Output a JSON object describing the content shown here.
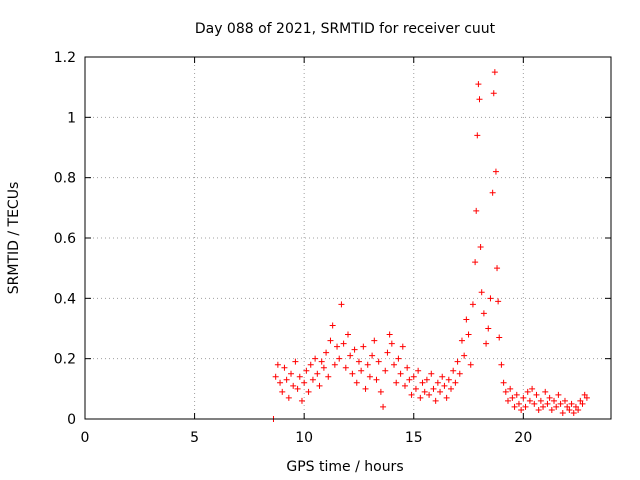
{
  "chart_data": {
    "type": "scatter",
    "title": "Day 088 of 2021, SRMTID for receiver cuut",
    "xlabel": "GPS time / hours",
    "ylabel": "SRMTID / TECUs",
    "xlim": [
      0,
      24
    ],
    "ylim": [
      0,
      1.2
    ],
    "xticks": [
      0,
      5,
      10,
      15,
      20
    ],
    "xtick_labels": [
      "0",
      "5",
      "10",
      "15",
      "20"
    ],
    "yticks": [
      0,
      0.2,
      0.4,
      0.6,
      0.8,
      1.0,
      1.2
    ],
    "ytick_labels": [
      "0",
      "0.2",
      "0.4",
      "0.6",
      "0.8",
      "1",
      "1.2"
    ],
    "grid": true,
    "marker": "plus",
    "color": "#ff0000",
    "series": [
      {
        "name": "SRMTID",
        "points": [
          [
            8.6,
            0.0
          ],
          [
            8.7,
            0.14
          ],
          [
            8.8,
            0.18
          ],
          [
            8.9,
            0.12
          ],
          [
            9.0,
            0.09
          ],
          [
            9.1,
            0.17
          ],
          [
            9.2,
            0.13
          ],
          [
            9.3,
            0.07
          ],
          [
            9.4,
            0.15
          ],
          [
            9.5,
            0.11
          ],
          [
            9.6,
            0.19
          ],
          [
            9.7,
            0.1
          ],
          [
            9.8,
            0.14
          ],
          [
            9.9,
            0.06
          ],
          [
            10.0,
            0.12
          ],
          [
            10.1,
            0.16
          ],
          [
            10.2,
            0.09
          ],
          [
            10.3,
            0.18
          ],
          [
            10.4,
            0.13
          ],
          [
            10.5,
            0.2
          ],
          [
            10.6,
            0.15
          ],
          [
            10.7,
            0.11
          ],
          [
            10.8,
            0.19
          ],
          [
            10.9,
            0.17
          ],
          [
            11.0,
            0.22
          ],
          [
            11.1,
            0.14
          ],
          [
            11.2,
            0.26
          ],
          [
            11.3,
            0.31
          ],
          [
            11.4,
            0.18
          ],
          [
            11.5,
            0.24
          ],
          [
            11.6,
            0.2
          ],
          [
            11.7,
            0.38
          ],
          [
            11.8,
            0.25
          ],
          [
            11.9,
            0.17
          ],
          [
            12.0,
            0.28
          ],
          [
            12.1,
            0.21
          ],
          [
            12.2,
            0.15
          ],
          [
            12.3,
            0.23
          ],
          [
            12.4,
            0.12
          ],
          [
            12.5,
            0.19
          ],
          [
            12.6,
            0.16
          ],
          [
            12.7,
            0.24
          ],
          [
            12.8,
            0.1
          ],
          [
            12.9,
            0.18
          ],
          [
            13.0,
            0.14
          ],
          [
            13.1,
            0.21
          ],
          [
            13.2,
            0.26
          ],
          [
            13.3,
            0.13
          ],
          [
            13.4,
            0.19
          ],
          [
            13.5,
            0.09
          ],
          [
            13.6,
            0.04
          ],
          [
            13.7,
            0.16
          ],
          [
            13.8,
            0.22
          ],
          [
            13.9,
            0.28
          ],
          [
            14.0,
            0.25
          ],
          [
            14.1,
            0.18
          ],
          [
            14.2,
            0.12
          ],
          [
            14.3,
            0.2
          ],
          [
            14.4,
            0.15
          ],
          [
            14.5,
            0.24
          ],
          [
            14.6,
            0.11
          ],
          [
            14.7,
            0.17
          ],
          [
            14.8,
            0.13
          ],
          [
            14.9,
            0.08
          ],
          [
            15.0,
            0.14
          ],
          [
            15.1,
            0.1
          ],
          [
            15.2,
            0.16
          ],
          [
            15.3,
            0.07
          ],
          [
            15.4,
            0.12
          ],
          [
            15.5,
            0.09
          ],
          [
            15.6,
            0.13
          ],
          [
            15.7,
            0.08
          ],
          [
            15.8,
            0.15
          ],
          [
            15.9,
            0.1
          ],
          [
            16.0,
            0.06
          ],
          [
            16.1,
            0.12
          ],
          [
            16.2,
            0.09
          ],
          [
            16.3,
            0.14
          ],
          [
            16.4,
            0.11
          ],
          [
            16.5,
            0.07
          ],
          [
            16.6,
            0.13
          ],
          [
            16.7,
            0.1
          ],
          [
            16.8,
            0.16
          ],
          [
            16.9,
            0.12
          ],
          [
            17.0,
            0.19
          ],
          [
            17.1,
            0.15
          ],
          [
            17.2,
            0.26
          ],
          [
            17.3,
            0.21
          ],
          [
            17.4,
            0.33
          ],
          [
            17.5,
            0.28
          ],
          [
            17.6,
            0.18
          ],
          [
            17.7,
            0.38
          ],
          [
            17.8,
            0.52
          ],
          [
            17.85,
            0.69
          ],
          [
            17.9,
            0.94
          ],
          [
            17.95,
            1.11
          ],
          [
            18.0,
            1.06
          ],
          [
            18.05,
            0.57
          ],
          [
            18.1,
            0.42
          ],
          [
            18.2,
            0.35
          ],
          [
            18.3,
            0.25
          ],
          [
            18.4,
            0.3
          ],
          [
            18.5,
            0.4
          ],
          [
            18.6,
            0.75
          ],
          [
            18.65,
            1.08
          ],
          [
            18.7,
            1.15
          ],
          [
            18.75,
            0.82
          ],
          [
            18.8,
            0.5
          ],
          [
            18.85,
            0.39
          ],
          [
            18.9,
            0.27
          ],
          [
            19.0,
            0.18
          ],
          [
            19.1,
            0.12
          ],
          [
            19.2,
            0.09
          ],
          [
            19.3,
            0.06
          ],
          [
            19.4,
            0.1
          ],
          [
            19.5,
            0.07
          ],
          [
            19.6,
            0.04
          ],
          [
            19.7,
            0.08
          ],
          [
            19.8,
            0.05
          ],
          [
            19.9,
            0.03
          ],
          [
            20.0,
            0.07
          ],
          [
            20.1,
            0.04
          ],
          [
            20.2,
            0.09
          ],
          [
            20.3,
            0.06
          ],
          [
            20.4,
            0.1
          ],
          [
            20.5,
            0.05
          ],
          [
            20.6,
            0.08
          ],
          [
            20.7,
            0.03
          ],
          [
            20.8,
            0.06
          ],
          [
            20.9,
            0.04
          ],
          [
            21.0,
            0.09
          ],
          [
            21.1,
            0.05
          ],
          [
            21.2,
            0.07
          ],
          [
            21.3,
            0.03
          ],
          [
            21.4,
            0.06
          ],
          [
            21.5,
            0.04
          ],
          [
            21.6,
            0.08
          ],
          [
            21.7,
            0.05
          ],
          [
            21.8,
            0.02
          ],
          [
            21.9,
            0.06
          ],
          [
            22.0,
            0.04
          ],
          [
            22.1,
            0.03
          ],
          [
            22.2,
            0.05
          ],
          [
            22.3,
            0.02
          ],
          [
            22.4,
            0.04
          ],
          [
            22.5,
            0.03
          ],
          [
            22.6,
            0.06
          ],
          [
            22.7,
            0.05
          ],
          [
            22.8,
            0.08
          ],
          [
            22.9,
            0.07
          ]
        ]
      }
    ]
  }
}
